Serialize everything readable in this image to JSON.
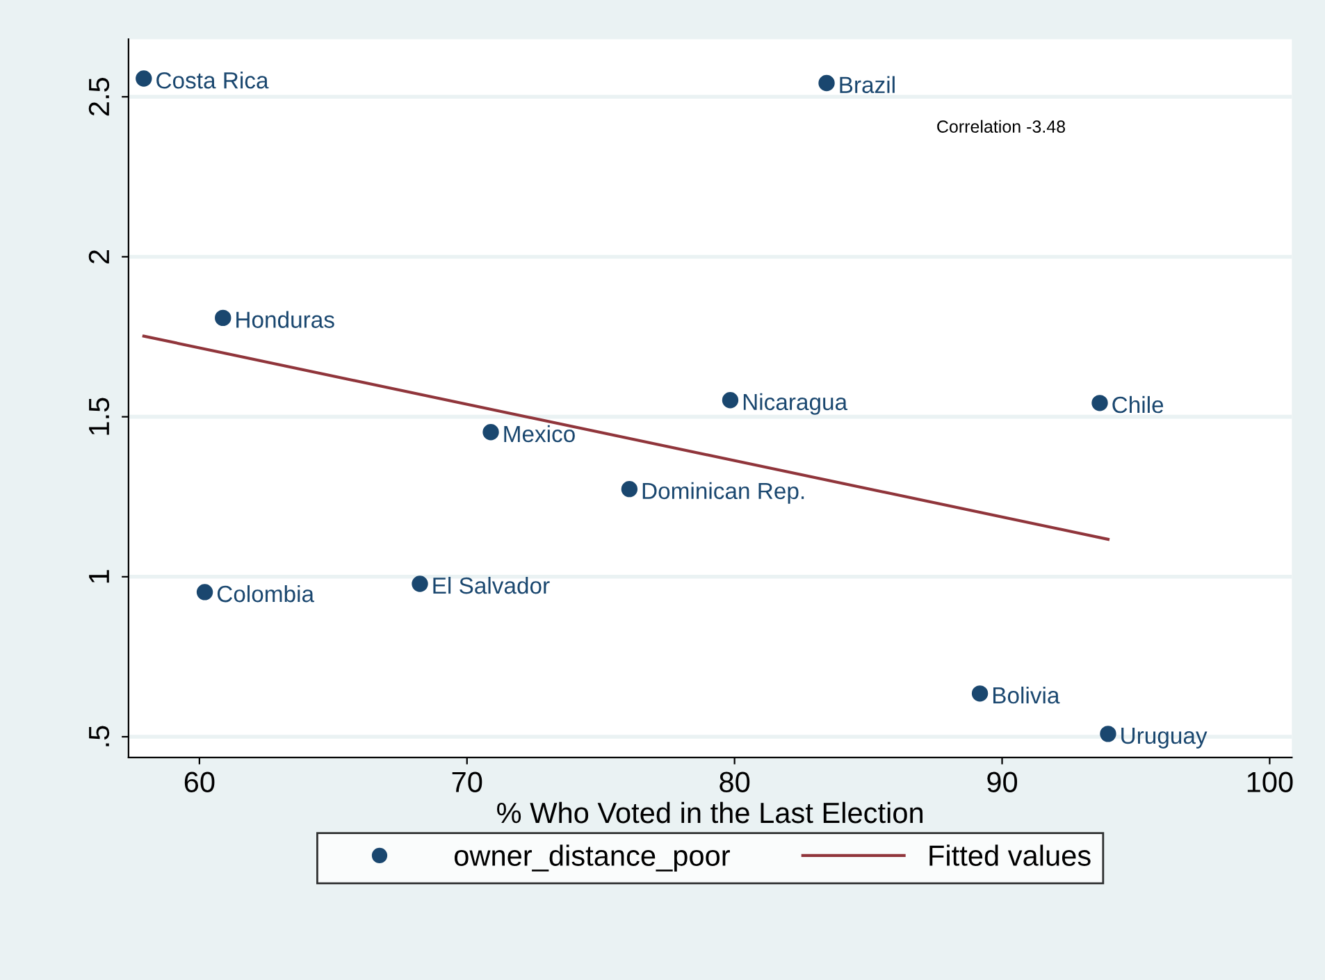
{
  "chart_data": {
    "type": "scatter",
    "xlabel": "% Who Voted in the Last Election",
    "xlim": [
      57.35,
      100.83
    ],
    "xticks": [
      60,
      70,
      80,
      90,
      100
    ],
    "ylim": [
      0.435,
      2.68
    ],
    "yticks": [
      {
        "value": 0.5,
        "label": ".5"
      },
      1,
      1.5,
      2,
      2.5
    ],
    "grid": "y",
    "legend": "bottom",
    "series": [
      {
        "name": "owner_distance_poor",
        "marker": "circle",
        "color": "#1a476f",
        "x": [
          57.92,
          83.44,
          60.88,
          79.84,
          93.65,
          70.89,
          76.07,
          60.2,
          68.24,
          89.17,
          93.96
        ],
        "values": [
          2.557,
          2.543,
          1.809,
          1.552,
          1.543,
          1.452,
          1.274,
          0.952,
          0.978,
          0.635,
          0.509
        ]
      },
      {
        "name": "Fitted values",
        "type": "line",
        "marker": "none",
        "color": "#90353b",
        "line_style": "solid",
        "x": [
          57.92,
          93.96
        ],
        "values": [
          1.752,
          1.117
        ]
      }
    ],
    "annotations": [
      {
        "text": "Costa Rica",
        "x": 57.92,
        "y": 2.557
      },
      {
        "text": "Brazil",
        "x": 83.44,
        "y": 2.543
      },
      {
        "text": "Honduras",
        "x": 60.88,
        "y": 1.809
      },
      {
        "text": "Nicaragua",
        "x": 79.84,
        "y": 1.552
      },
      {
        "text": "Chile",
        "x": 93.65,
        "y": 1.543
      },
      {
        "text": "Mexico",
        "x": 70.89,
        "y": 1.452
      },
      {
        "text": "Dominican Rep.",
        "x": 76.07,
        "y": 1.274
      },
      {
        "text": "Colombia",
        "x": 60.2,
        "y": 0.952
      },
      {
        "text": "El Salvador",
        "x": 68.24,
        "y": 0.978
      },
      {
        "text": "Bolivia",
        "x": 89.17,
        "y": 0.635
      },
      {
        "text": "Uruguay",
        "x": 93.96,
        "y": 0.509
      },
      "Correlation -3.48"
    ]
  }
}
